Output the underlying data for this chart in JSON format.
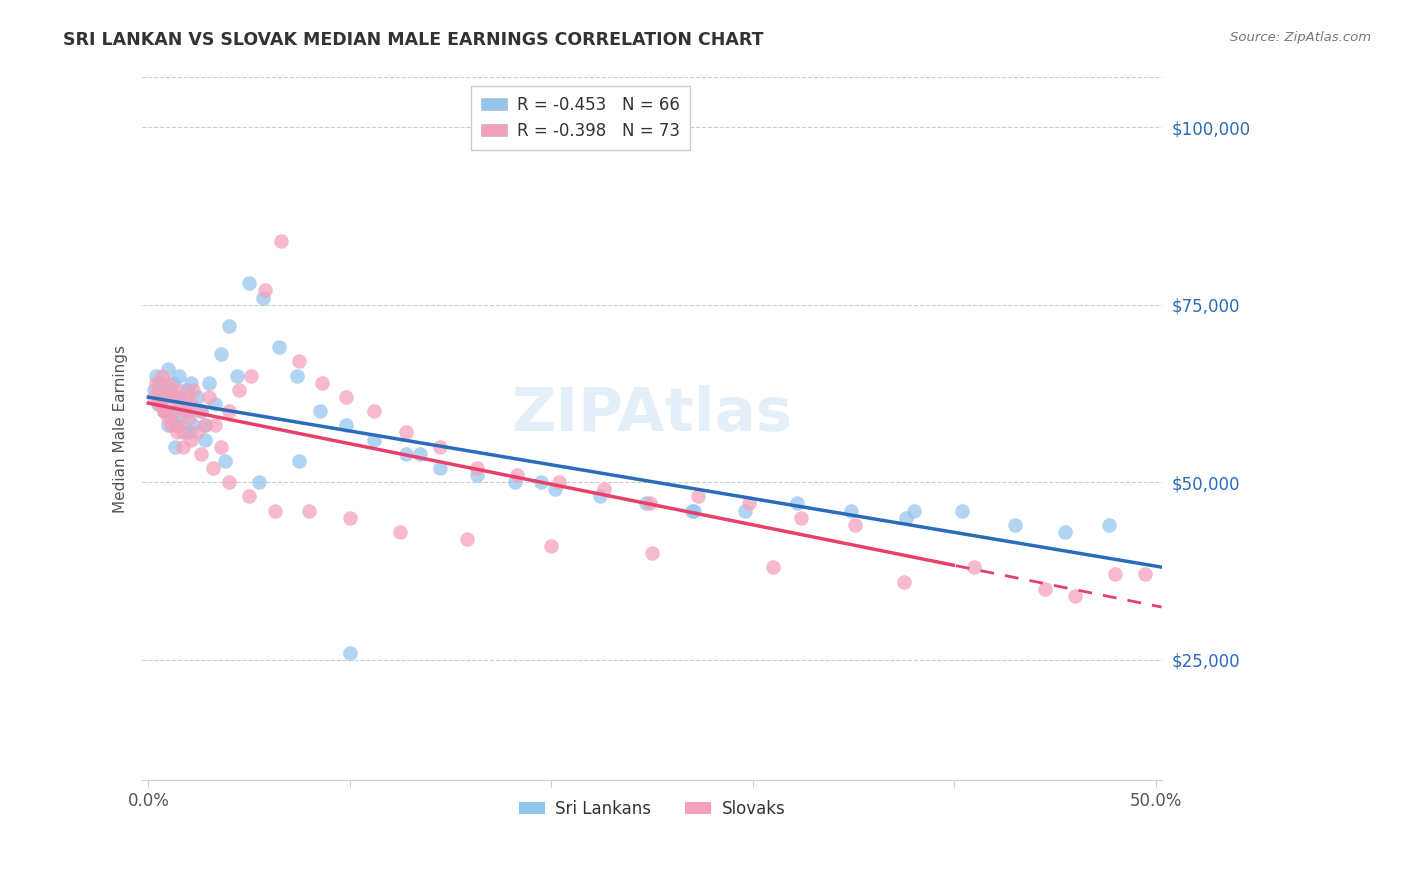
{
  "title": "SRI LANKAN VS SLOVAK MEDIAN MALE EARNINGS CORRELATION CHART",
  "source": "Source: ZipAtlas.com",
  "ylabel": "Median Male Earnings",
  "yticks": [
    25000,
    50000,
    75000,
    100000
  ],
  "ytick_labels": [
    "$25,000",
    "$50,000",
    "$75,000",
    "$100,000"
  ],
  "xlim": [
    -0.003,
    0.503
  ],
  "ylim": [
    8000,
    107000
  ],
  "legend_label_1": "R = -0.453   N = 66",
  "legend_label_2": "R = -0.398   N = 73",
  "legend_label_3": "Sri Lankans",
  "legend_label_4": "Slovaks",
  "color_blue": "#93C4EE",
  "color_pink": "#F4A0BA",
  "color_blue_line": "#2B6CB8",
  "color_pink_line": "#E8406A",
  "watermark": "ZIPAtlas",
  "title_color": "#333333",
  "source_color": "#777777",
  "ytick_color": "#2B6CB8",
  "grid_color": "#CCCCCC",
  "axis_label_color": "#555555",
  "marker_size": 110,
  "marker_alpha": 0.72
}
